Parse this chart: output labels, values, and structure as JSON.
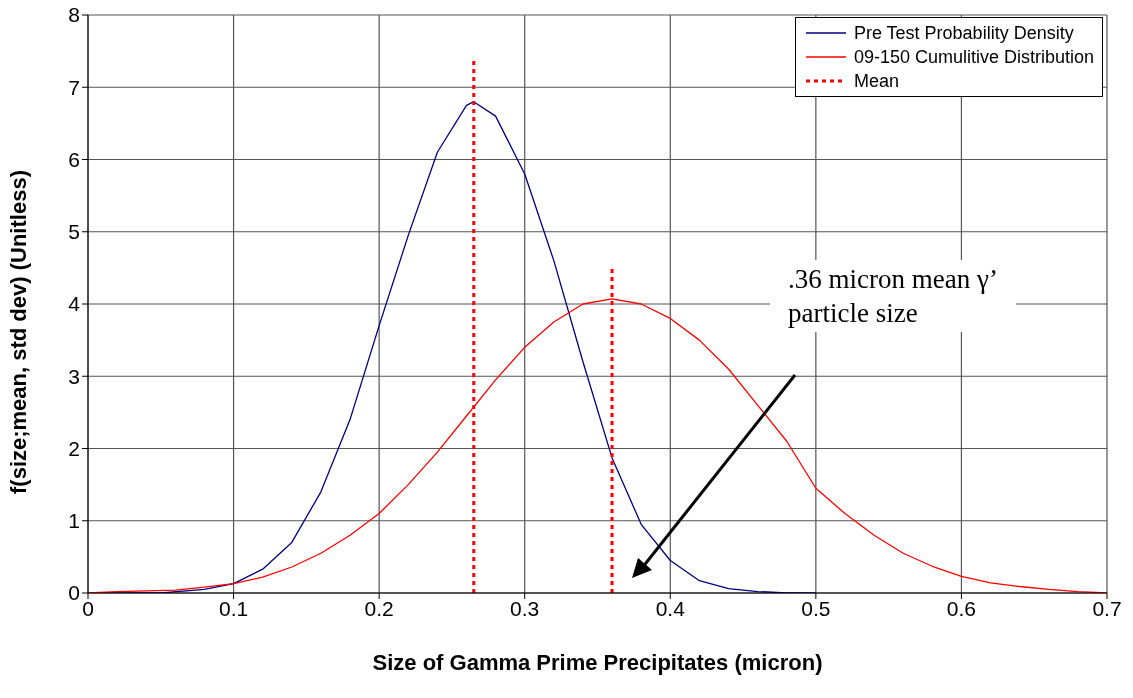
{
  "chart_data": {
    "type": "line",
    "xlabel": "Size of Gamma Prime Precipitates (micron)",
    "ylabel": "f(size;mean, std dev) (Unitless)",
    "xlim": [
      0,
      0.7
    ],
    "xticks": [
      0,
      0.1,
      0.2,
      0.3,
      0.4,
      0.5,
      0.6,
      0.7
    ],
    "ylim": [
      0,
      8
    ],
    "yticks": [
      0,
      1,
      2,
      3,
      4,
      5,
      6,
      7,
      8
    ],
    "grid": true,
    "legend": "top right",
    "marker": "none",
    "series": [
      {
        "name": "Pre Test Probability Density",
        "color": "#000080",
        "line_style": "solid",
        "x": [
          0.01,
          0.05,
          0.08,
          0.1,
          0.12,
          0.14,
          0.16,
          0.18,
          0.2,
          0.22,
          0.24,
          0.26,
          0.265,
          0.28,
          0.3,
          0.32,
          0.34,
          0.36,
          0.38,
          0.4,
          0.42,
          0.44,
          0.46,
          0.48,
          0.5
        ],
        "values": [
          0,
          0,
          0.05,
          0.13,
          0.33,
          0.7,
          1.4,
          2.4,
          3.7,
          4.95,
          6.1,
          6.75,
          6.8,
          6.6,
          5.8,
          4.6,
          3.2,
          1.87,
          0.95,
          0.45,
          0.17,
          0.06,
          0.02,
          0,
          0
        ]
      },
      {
        "name": "09-150 Cumulitive Distribution",
        "color": "#ff0000",
        "line_style": "solid",
        "x": [
          0,
          0.02,
          0.06,
          0.08,
          0.1,
          0.12,
          0.14,
          0.16,
          0.18,
          0.2,
          0.22,
          0.24,
          0.26,
          0.28,
          0.3,
          0.32,
          0.34,
          0.36,
          0.38,
          0.4,
          0.42,
          0.44,
          0.46,
          0.48,
          0.5,
          0.52,
          0.54,
          0.56,
          0.58,
          0.6,
          0.62,
          0.64,
          0.66,
          0.68,
          0.7
        ],
        "values": [
          0,
          0.02,
          0.04,
          0.08,
          0.13,
          0.22,
          0.36,
          0.55,
          0.8,
          1.1,
          1.5,
          1.95,
          2.45,
          2.95,
          3.4,
          3.75,
          4.0,
          4.07,
          4.0,
          3.8,
          3.5,
          3.1,
          2.6,
          2.1,
          1.45,
          1.1,
          0.8,
          0.55,
          0.37,
          0.23,
          0.14,
          0.09,
          0.05,
          0.02,
          0
        ]
      },
      {
        "name": "Mean",
        "color": "#ff0000",
        "line_style": "dotted",
        "x": [
          0.265,
          0.265,
          0.31,
          0.36,
          0.36
        ],
        "values": [
          0,
          7.4,
          null,
          0,
          4.5
        ]
      }
    ],
    "annotations": [
      ".36 micron mean γ’\nparticle size"
    ]
  }
}
